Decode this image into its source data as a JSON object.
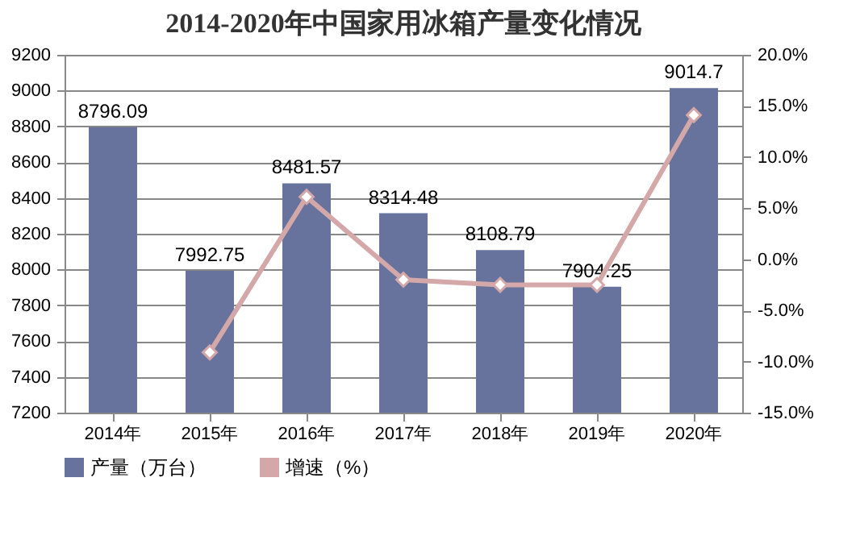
{
  "chart_data": {
    "type": "bar",
    "title": "2014-2020年中国家用冰箱产量变化情况",
    "categories": [
      "2014年",
      "2015年",
      "2016年",
      "2017年",
      "2018年",
      "2019年",
      "2020年"
    ],
    "series": [
      {
        "name": "产量（万台）",
        "color": "#67739d",
        "values": [
          8796.09,
          7992.75,
          8481.57,
          8314.48,
          8108.79,
          7904.25,
          9014.7
        ],
        "value_labels": [
          "8796.09",
          "7992.75",
          "8481.57",
          "8314.48",
          "8108.79",
          "7904.25",
          "9014.7"
        ]
      },
      {
        "name": "增速（%）",
        "type": "line",
        "axis": "y2",
        "color": "#d4a8a8",
        "marker": "diamond",
        "values": [
          null,
          -9.1,
          6.1,
          -2.0,
          -2.5,
          -2.5,
          14.1
        ]
      }
    ],
    "ylim": [
      7200,
      9200
    ],
    "yticks": [
      7200,
      7400,
      7600,
      7800,
      8000,
      8200,
      8400,
      8600,
      8800,
      9000,
      9200
    ],
    "y2lim": [
      -15,
      20
    ],
    "y2ticks": [
      {
        "value": -15,
        "label": "-15.0%"
      },
      {
        "value": -10,
        "label": "-10.0%"
      },
      {
        "value": -5,
        "label": "-5.0%"
      },
      {
        "value": 0,
        "label": "0.0%"
      },
      {
        "value": 5,
        "label": "5.0%"
      },
      {
        "value": 10,
        "label": "10.0%"
      },
      {
        "value": 15,
        "label": "15.0%"
      },
      {
        "value": 20,
        "label": "20.0%"
      }
    ],
    "grid": "y",
    "legend": "bottom"
  }
}
